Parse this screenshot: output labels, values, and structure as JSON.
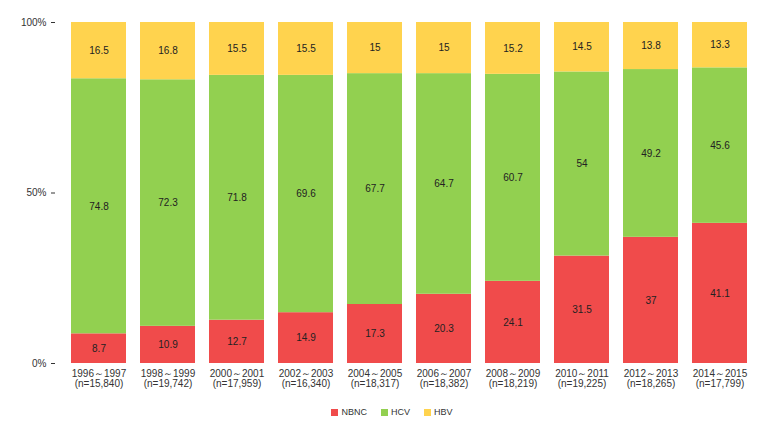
{
  "chart_data": {
    "type": "bar",
    "stacked": true,
    "data_labels": true,
    "grid": false,
    "legend": "bottom",
    "categories": [
      "1996～1997\n(n=15,840)",
      "1998～1999\n(n=19,742)",
      "2000～2001\n(n=17,959)",
      "2002～2003\n(n=16,340)",
      "2004～2005\n(n=18,317)",
      "2006～2007\n(n=18,382)",
      "2008～2009\n(n=18,219)",
      "2010～2011\n(n=19,225)",
      "2012～2013\n(n=18,265)",
      "2014～2015\n(n=17,799)"
    ],
    "series": [
      {
        "name": "NBNC",
        "color": "#f04b4b",
        "values": [
          8.7,
          10.9,
          12.7,
          14.9,
          17.3,
          20.3,
          24.1,
          31.5,
          37,
          41.1
        ]
      },
      {
        "name": "HCV",
        "color": "#92d050",
        "values": [
          74.8,
          72.3,
          71.8,
          69.6,
          67.7,
          64.7,
          60.7,
          54,
          49.2,
          45.6
        ]
      },
      {
        "name": "HBV",
        "color": "#ffd34e",
        "values": [
          16.5,
          16.8,
          15.5,
          15.5,
          15,
          15,
          15.2,
          14.5,
          13.8,
          13.3
        ]
      }
    ],
    "ylim": [
      0,
      100
    ],
    "yticks": [
      {
        "value": 0,
        "label": "0%"
      },
      {
        "value": 50,
        "label": "50%"
      },
      {
        "value": 100,
        "label": "100%"
      }
    ]
  }
}
